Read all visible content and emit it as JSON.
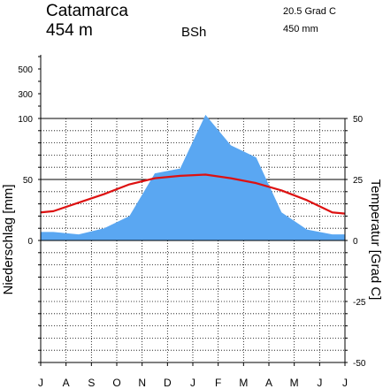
{
  "header": {
    "station": "Catamarca",
    "elevation": "454 m",
    "climate_class": "BSh",
    "mean_temperature": "20.5 Grad C",
    "annual_precipitation": "450 mm"
  },
  "colors": {
    "precip_fill": "#5aa7f2",
    "temperature_line": "#dd1111",
    "grid": "#000000"
  },
  "chart_data": {
    "type": "area",
    "title": "Catamarca",
    "x": [
      "J",
      "A",
      "S",
      "O",
      "N",
      "D",
      "J",
      "F",
      "M",
      "A",
      "M",
      "J"
    ],
    "x_tick_labels": [
      "J",
      "A",
      "S",
      "O",
      "N",
      "D",
      "J",
      "F",
      "M",
      "A",
      "M",
      "J",
      "J"
    ],
    "ylabel_left": "Niederschlag [mm]",
    "ylabel_right": "Temperatur [Grad C]",
    "y_left_ticks": [
      "0",
      "50",
      "100",
      "300",
      "500"
    ],
    "y_right_ticks": [
      "50",
      "25",
      "0",
      "-25",
      "-50"
    ],
    "precip_scale_break": 100,
    "series": [
      {
        "name": "Niederschlag",
        "unit": "mm",
        "values": [
          7,
          5,
          10,
          20,
          55,
          59,
          103,
          78,
          68,
          23,
          9,
          5
        ]
      },
      {
        "name": "Temperatur",
        "unit": "Grad C",
        "values": [
          12,
          15.5,
          19,
          23,
          25.5,
          26.5,
          27,
          25.5,
          23.5,
          20.5,
          16.5,
          11.5
        ]
      }
    ],
    "temp_ylim": [
      -50,
      50
    ],
    "grid": true
  }
}
